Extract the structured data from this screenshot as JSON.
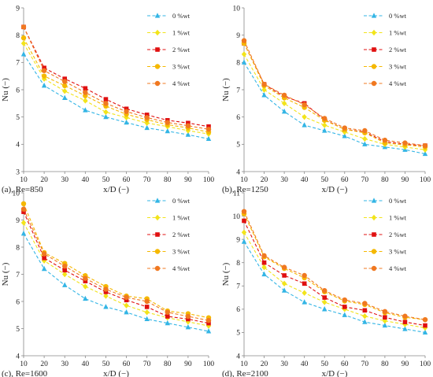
{
  "series_names": [
    "0 %wt",
    "1 %wt",
    "2 %wt",
    "3 %wt",
    "4 %wt"
  ],
  "series_colors": [
    "#33B5E5",
    "#F2E41B",
    "#E01010",
    "#F5B800",
    "#F07820"
  ],
  "series_markers": [
    "triangle",
    "diamond",
    "square",
    "circle",
    "circle"
  ],
  "chart_data": [
    {
      "type": "line",
      "caption": "(a), Re=850",
      "xlabel": "x/D (−)",
      "ylabel": "Nu (−)",
      "x": [
        10,
        20,
        30,
        40,
        50,
        60,
        70,
        80,
        90,
        100
      ],
      "xlim": [
        10,
        100
      ],
      "ylim": [
        3,
        9
      ],
      "yticks": [
        3,
        4,
        5,
        6,
        7,
        8,
        9
      ],
      "grid": false,
      "legend": "top-right",
      "series": [
        {
          "name": "0 %wt",
          "values": [
            7.3,
            6.15,
            5.7,
            5.25,
            5.0,
            4.8,
            4.6,
            4.48,
            4.35,
            4.2
          ]
        },
        {
          "name": "1 %wt",
          "values": [
            7.7,
            6.4,
            5.95,
            5.6,
            5.18,
            4.98,
            4.78,
            4.65,
            4.5,
            4.38
          ]
        },
        {
          "name": "2 %wt",
          "values": [
            8.3,
            6.8,
            6.4,
            6.05,
            5.65,
            5.3,
            5.08,
            4.88,
            4.78,
            4.65
          ]
        },
        {
          "name": "3 %wt",
          "values": [
            7.9,
            6.5,
            6.15,
            5.78,
            5.4,
            5.1,
            4.9,
            4.72,
            4.6,
            4.45
          ]
        },
        {
          "name": "4 %wt",
          "values": [
            8.3,
            6.7,
            6.3,
            5.9,
            5.5,
            5.2,
            4.98,
            4.8,
            4.68,
            4.55
          ]
        }
      ]
    },
    {
      "type": "line",
      "caption": "(b), Re=1250",
      "xlabel": "x/D (−)",
      "ylabel": "Nu (−)",
      "x": [
        10,
        20,
        30,
        40,
        50,
        60,
        70,
        80,
        90,
        100
      ],
      "xlim": [
        10,
        100
      ],
      "ylim": [
        4,
        10
      ],
      "yticks": [
        4,
        5,
        6,
        7,
        8,
        9,
        10
      ],
      "grid": false,
      "legend": "top-right",
      "series": [
        {
          "name": "0 %wt",
          "values": [
            8.0,
            6.8,
            6.2,
            5.7,
            5.5,
            5.3,
            5.0,
            4.9,
            4.8,
            4.65
          ]
        },
        {
          "name": "1 %wt",
          "values": [
            8.3,
            7.0,
            6.5,
            6.0,
            5.7,
            5.45,
            5.2,
            5.0,
            4.9,
            4.8
          ]
        },
        {
          "name": "2 %wt",
          "values": [
            8.7,
            7.2,
            6.75,
            6.5,
            5.9,
            5.55,
            5.45,
            5.1,
            5.0,
            4.95
          ]
        },
        {
          "name": "3 %wt",
          "values": [
            8.7,
            7.15,
            6.7,
            6.35,
            5.88,
            5.55,
            5.42,
            5.05,
            4.98,
            4.9
          ]
        },
        {
          "name": "4 %wt",
          "values": [
            8.8,
            7.2,
            6.8,
            6.45,
            5.95,
            5.6,
            5.5,
            5.15,
            5.05,
            4.95
          ]
        }
      ]
    },
    {
      "type": "line",
      "caption": "(c), Re=1600",
      "xlabel": "x/D (−)",
      "ylabel": "Nu (−)",
      "x": [
        10,
        20,
        30,
        40,
        50,
        60,
        70,
        80,
        90,
        100
      ],
      "xlim": [
        10,
        100
      ],
      "ylim": [
        4,
        10
      ],
      "yticks": [
        4,
        5,
        6,
        7,
        8,
        9,
        10
      ],
      "grid": false,
      "legend": "top-right",
      "series": [
        {
          "name": "0 %wt",
          "values": [
            8.5,
            7.2,
            6.6,
            6.1,
            5.8,
            5.6,
            5.35,
            5.2,
            5.05,
            4.9
          ]
        },
        {
          "name": "1 %wt",
          "values": [
            8.9,
            7.5,
            7.0,
            6.55,
            6.2,
            5.85,
            5.6,
            5.4,
            5.25,
            5.1
          ]
        },
        {
          "name": "2 %wt",
          "values": [
            9.3,
            7.6,
            7.15,
            6.75,
            6.35,
            6.05,
            5.8,
            5.45,
            5.35,
            5.2
          ]
        },
        {
          "name": "3 %wt",
          "values": [
            9.6,
            7.8,
            7.4,
            6.95,
            6.55,
            6.2,
            6.1,
            5.65,
            5.55,
            5.4
          ]
        },
        {
          "name": "4 %wt",
          "values": [
            9.4,
            7.75,
            7.3,
            6.85,
            6.45,
            6.15,
            6.0,
            5.6,
            5.45,
            5.3
          ]
        }
      ]
    },
    {
      "type": "line",
      "caption": "(d), Re=2100",
      "xlabel": "x/D (−)",
      "ylabel": "Nu (−)",
      "x": [
        10,
        20,
        30,
        40,
        50,
        60,
        70,
        80,
        90,
        100
      ],
      "xlim": [
        10,
        100
      ],
      "ylim": [
        4,
        11
      ],
      "yticks": [
        4,
        5,
        6,
        7,
        8,
        9,
        10,
        11
      ],
      "grid": false,
      "legend": "top-right",
      "series": [
        {
          "name": "0 %wt",
          "values": [
            8.9,
            7.5,
            6.8,
            6.3,
            6.0,
            5.75,
            5.45,
            5.3,
            5.15,
            5.0
          ]
        },
        {
          "name": "1 %wt",
          "values": [
            9.3,
            7.8,
            7.1,
            6.7,
            6.3,
            6.0,
            5.7,
            5.5,
            5.35,
            5.2
          ]
        },
        {
          "name": "2 %wt",
          "values": [
            9.8,
            8.0,
            7.45,
            7.1,
            6.5,
            6.1,
            5.95,
            5.65,
            5.45,
            5.3
          ]
        },
        {
          "name": "3 %wt",
          "values": [
            10.1,
            8.25,
            7.75,
            7.35,
            6.75,
            6.35,
            6.2,
            5.85,
            5.65,
            5.55
          ]
        },
        {
          "name": "4 %wt",
          "values": [
            10.2,
            8.3,
            7.8,
            7.45,
            6.8,
            6.4,
            6.25,
            5.9,
            5.7,
            5.55
          ]
        }
      ]
    }
  ]
}
